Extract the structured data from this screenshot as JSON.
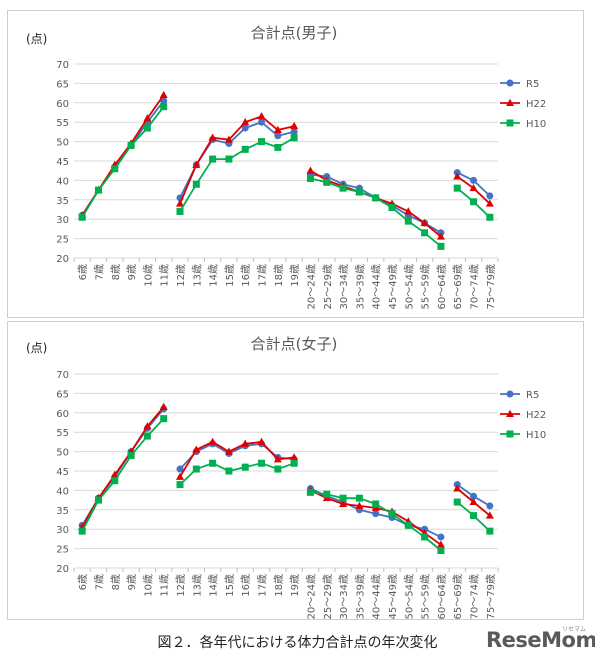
{
  "chart_data": [
    {
      "type": "line",
      "title": "合計点(男子)",
      "ylabel": "(点)",
      "ylim": [
        20,
        70
      ],
      "yticks": [
        20,
        25,
        30,
        35,
        40,
        45,
        50,
        55,
        60,
        65,
        70
      ],
      "grid": true,
      "legend_position": "right",
      "categories": [
        "6歳",
        "7歳",
        "8歳",
        "9歳",
        "10歳",
        "11歳",
        "12歳",
        "13歳",
        "14歳",
        "15歳",
        "16歳",
        "17歳",
        "18歳",
        "19歳",
        "20～24歳",
        "25～29歳",
        "30～34歳",
        "35～39歳",
        "40～44歳",
        "45～49歳",
        "50～54歳",
        "55～59歳",
        "60～64歳",
        "65～69歳",
        "70～74歳",
        "75～79歳"
      ],
      "segments": [
        [
          0,
          5
        ],
        [
          6,
          13
        ],
        [
          14,
          22
        ],
        [
          23,
          25
        ]
      ],
      "series": [
        {
          "name": "R5",
          "color": "#4472C4",
          "marker": "circle",
          "values": [
            31.0,
            37.5,
            43.5,
            49.0,
            55.0,
            60.5,
            35.5,
            44.0,
            50.5,
            49.5,
            53.5,
            55.0,
            51.5,
            52.5,
            41.5,
            41.0,
            39.0,
            38.0,
            35.5,
            33.5,
            31.0,
            29.0,
            26.5,
            42.0,
            40.0,
            36.0
          ]
        },
        {
          "name": "H22",
          "color": "#E00000",
          "marker": "triangle",
          "values": [
            31.0,
            37.5,
            44.0,
            49.5,
            56.0,
            62.0,
            34.0,
            44.0,
            51.0,
            50.5,
            55.0,
            56.5,
            53.0,
            54.0,
            42.5,
            40.0,
            38.5,
            37.0,
            35.5,
            34.0,
            32.0,
            29.0,
            25.5,
            41.0,
            38.0,
            34.0
          ]
        },
        {
          "name": "H10",
          "color": "#00B050",
          "marker": "square",
          "values": [
            30.5,
            37.5,
            43.0,
            49.0,
            53.5,
            59.0,
            32.0,
            39.0,
            45.5,
            45.5,
            48.0,
            50.0,
            48.5,
            51.0,
            40.5,
            39.5,
            38.0,
            37.0,
            35.5,
            33.0,
            29.5,
            26.5,
            23.0,
            38.0,
            34.5,
            30.5
          ]
        }
      ]
    },
    {
      "type": "line",
      "title": "合計点(女子)",
      "ylabel": "(点)",
      "ylim": [
        20,
        70
      ],
      "yticks": [
        20,
        25,
        30,
        35,
        40,
        45,
        50,
        55,
        60,
        65,
        70
      ],
      "grid": true,
      "legend_position": "right",
      "categories": [
        "6歳",
        "7歳",
        "8歳",
        "9歳",
        "10歳",
        "11歳",
        "12歳",
        "13歳",
        "14歳",
        "15歳",
        "16歳",
        "17歳",
        "18歳",
        "19歳",
        "20～24歳",
        "25～29歳",
        "30～34歳",
        "35～39歳",
        "40～44歳",
        "45～49歳",
        "50～54歳",
        "55～59歳",
        "60～64歳",
        "65～69歳",
        "70～74歳",
        "75～79歳"
      ],
      "segments": [
        [
          0,
          5
        ],
        [
          6,
          13
        ],
        [
          14,
          22
        ],
        [
          23,
          25
        ]
      ],
      "series": [
        {
          "name": "R5",
          "color": "#4472C4",
          "marker": "circle",
          "values": [
            31.0,
            38.0,
            43.5,
            50.0,
            56.0,
            61.0,
            45.5,
            50.0,
            52.0,
            49.5,
            51.5,
            52.0,
            48.5,
            48.0,
            40.5,
            38.5,
            37.0,
            35.0,
            34.0,
            33.0,
            31.0,
            30.0,
            28.0,
            41.5,
            38.5,
            36.0
          ]
        },
        {
          "name": "H22",
          "color": "#E00000",
          "marker": "triangle",
          "values": [
            30.5,
            38.0,
            44.0,
            50.0,
            56.5,
            61.5,
            43.5,
            50.5,
            52.5,
            50.0,
            52.0,
            52.5,
            48.0,
            48.5,
            40.0,
            38.0,
            36.5,
            36.0,
            35.5,
            34.5,
            32.0,
            29.0,
            26.0,
            40.5,
            37.0,
            33.5
          ]
        },
        {
          "name": "H10",
          "color": "#00B050",
          "marker": "square",
          "values": [
            29.5,
            37.5,
            42.5,
            49.0,
            54.0,
            58.5,
            41.5,
            45.5,
            47.0,
            45.0,
            46.0,
            47.0,
            45.5,
            47.0,
            39.5,
            39.0,
            38.0,
            38.0,
            36.5,
            34.0,
            31.0,
            28.0,
            24.5,
            37.0,
            33.5,
            29.5
          ]
        }
      ]
    }
  ],
  "caption": "図２．各年代における体力合計点の年次変化",
  "logo": "ReseMom",
  "logo_sub": "リセマム"
}
